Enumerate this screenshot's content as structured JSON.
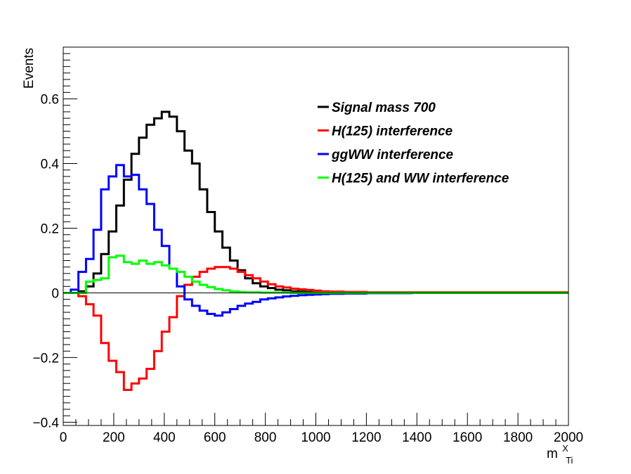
{
  "chart_data": {
    "type": "line",
    "step": true,
    "title": "",
    "xlabel": "m",
    "xlabel_sup": "X",
    "xlabel_sub": "Ti",
    "ylabel": "Events",
    "xlim": [
      0,
      2000
    ],
    "ylim": [
      -0.41,
      0.76
    ],
    "xticks": [
      0,
      200,
      400,
      600,
      800,
      1000,
      1200,
      1400,
      1600,
      1800,
      2000
    ],
    "xtick_labels": [
      "0",
      "200",
      "400",
      "600",
      "800",
      "1000",
      "1200",
      "1400",
      "1600",
      "1800",
      "2000"
    ],
    "yticks": [
      -0.4,
      -0.2,
      0,
      0.2,
      0.4,
      0.6
    ],
    "ytick_labels": [
      "−0.4",
      "−0.2",
      "0",
      "0.2",
      "0.4",
      "0.6"
    ],
    "bin_edges": [
      0,
      30,
      60,
      90,
      120,
      150,
      180,
      210,
      240,
      270,
      300,
      330,
      360,
      390,
      420,
      450,
      480,
      510,
      540,
      570,
      600,
      630,
      660,
      690,
      720,
      750,
      780,
      810,
      840,
      870,
      900,
      930,
      960,
      990,
      1020,
      1050,
      1080,
      1110,
      1140,
      1170,
      1200,
      1230,
      1260,
      1290,
      1320,
      1350,
      1380,
      1410,
      1440,
      1470,
      1500,
      1530,
      1560,
      1590,
      1620,
      1650,
      1680,
      1710,
      1740,
      1770,
      1800,
      1830,
      1860,
      1890,
      1920,
      1950,
      1980,
      2000
    ],
    "grid": false,
    "legend_position": "top-right",
    "series": [
      {
        "name": "Signal mass 700",
        "color": "#000000",
        "values": [
          0,
          0,
          0.005,
          0.02,
          0.06,
          0.12,
          0.19,
          0.27,
          0.35,
          0.43,
          0.48,
          0.52,
          0.54,
          0.56,
          0.545,
          0.5,
          0.44,
          0.4,
          0.32,
          0.25,
          0.19,
          0.14,
          0.1,
          0.07,
          0.045,
          0.03,
          0.02,
          0.015,
          0.01,
          0.008,
          0.005,
          0.004,
          0.003,
          0.002,
          0.002,
          0.001,
          0.001,
          0.001,
          0,
          0,
          0,
          0,
          0,
          0,
          0,
          0,
          0,
          0,
          0,
          0,
          0,
          0,
          0,
          0,
          0,
          0,
          0,
          0,
          0,
          0,
          0,
          0,
          0,
          0,
          0,
          0,
          0
        ]
      },
      {
        "name": "H(125) interference",
        "color": "#ff0000",
        "values": [
          0,
          0,
          -0.01,
          -0.035,
          -0.07,
          -0.155,
          -0.21,
          -0.245,
          -0.3,
          -0.28,
          -0.265,
          -0.235,
          -0.18,
          -0.12,
          -0.075,
          -0.01,
          0.025,
          0.05,
          0.065,
          0.075,
          0.08,
          0.08,
          0.075,
          0.065,
          0.055,
          0.045,
          0.035,
          0.027,
          0.02,
          0.017,
          0.013,
          0.011,
          0.009,
          0.007,
          0.005,
          0.004,
          0.004,
          0.003,
          0.003,
          0.003,
          0.002,
          0.002,
          0.002,
          0.002,
          0.002,
          0.002,
          0.002,
          0.002,
          0.002,
          0.002,
          0.002,
          0.002,
          0.002,
          0.002,
          0.002,
          0.002,
          0.002,
          0.002,
          0.002,
          0.002,
          0.002,
          0.002,
          0.002,
          0.002,
          0.002,
          0.002,
          0.002
        ]
      },
      {
        "name": "ggWW interference",
        "color": "#0000ff",
        "values": [
          0,
          0.01,
          0.065,
          0.105,
          0.195,
          0.32,
          0.36,
          0.395,
          0.36,
          0.365,
          0.32,
          0.275,
          0.195,
          0.145,
          0.075,
          0.02,
          -0.02,
          -0.04,
          -0.055,
          -0.065,
          -0.07,
          -0.06,
          -0.05,
          -0.04,
          -0.033,
          -0.028,
          -0.02,
          -0.017,
          -0.014,
          -0.011,
          -0.009,
          -0.007,
          -0.006,
          -0.005,
          -0.004,
          -0.003,
          -0.003,
          -0.002,
          -0.002,
          -0.002,
          -0.001,
          -0.001,
          -0.001,
          -0.001,
          -0.001,
          -0.001,
          0,
          0,
          0,
          0,
          0,
          0,
          0,
          0,
          0,
          0,
          0,
          0,
          0,
          0,
          0,
          0,
          0,
          0,
          0,
          0,
          0
        ]
      },
      {
        "name": "H(125) and WW interference",
        "color": "#00ff00",
        "values": [
          0,
          0,
          0,
          0.035,
          0.04,
          0.045,
          0.11,
          0.115,
          0.095,
          0.09,
          0.1,
          0.09,
          0.095,
          0.085,
          0.075,
          0.065,
          0.05,
          0.035,
          0.025,
          0.018,
          0.012,
          0.008,
          0.005,
          0.003,
          0.002,
          0.002,
          0.001,
          0.001,
          0.001,
          0.001,
          0,
          0,
          0,
          0,
          0,
          0,
          0,
          0,
          0,
          0,
          0,
          0,
          0,
          0,
          0,
          0,
          0,
          0,
          0,
          0,
          0,
          0,
          0,
          0,
          0,
          0,
          0,
          0,
          0,
          0,
          0,
          0,
          0,
          0,
          0,
          0,
          0
        ]
      }
    ]
  }
}
